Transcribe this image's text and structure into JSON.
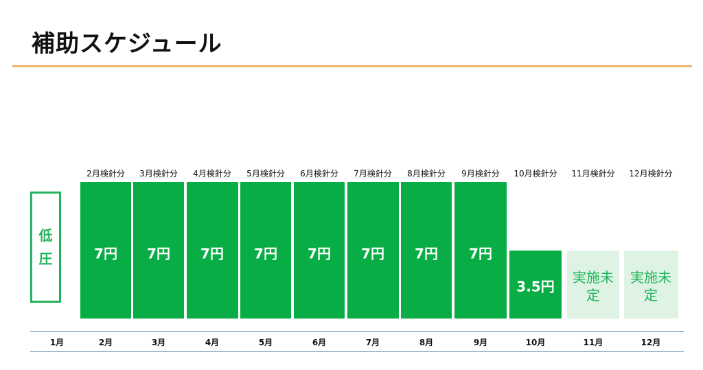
{
  "title": "補助スケジュール",
  "colors": {
    "rule": "#f0b36a",
    "bar": "#08ae45",
    "undecided": "#dff3e4",
    "undecided_text": "#21b45b",
    "axis": "#5a7fb3",
    "tier": "#21b45b"
  },
  "tier_label": [
    "低",
    "圧"
  ],
  "chart_data": {
    "type": "bar",
    "unit": "円",
    "categories": [
      "1月",
      "2月",
      "3月",
      "4月",
      "5月",
      "6月",
      "7月",
      "8月",
      "9月",
      "10月",
      "11月",
      "12月"
    ],
    "category_labels": [
      "",
      "2月検針分",
      "3月検針分",
      "4月検針分",
      "5月検針分",
      "6月検針分",
      "7月検針分",
      "8月検針分",
      "9月検針分",
      "10月検針分",
      "11月検針分",
      "12月検針分"
    ],
    "values": [
      null,
      7,
      7,
      7,
      7,
      7,
      7,
      7,
      7,
      3.5,
      null,
      null
    ],
    "value_labels": [
      "",
      "7円",
      "7円",
      "7円",
      "7円",
      "7円",
      "7円",
      "7円",
      "7円",
      "3.5円",
      "実施未定",
      "実施未定"
    ],
    "undecided": [
      false,
      false,
      false,
      false,
      false,
      false,
      false,
      false,
      false,
      false,
      true,
      true
    ],
    "ylim": [
      0,
      7
    ]
  }
}
